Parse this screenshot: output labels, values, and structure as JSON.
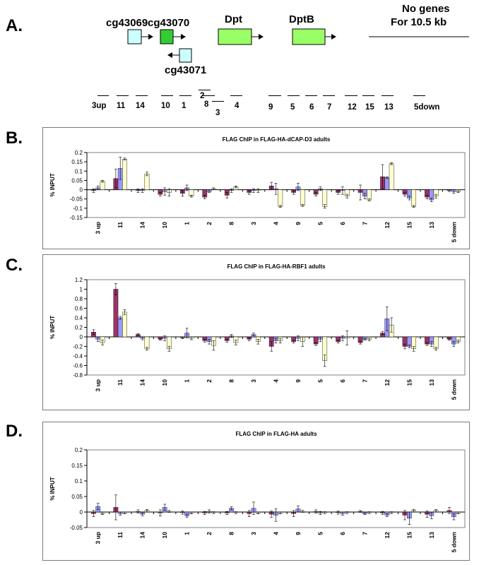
{
  "panel_a": {
    "letter": "A.",
    "genes": [
      {
        "id": "cg43069",
        "label": "cg43069",
        "color": "#ccffff"
      },
      {
        "id": "cg43070",
        "label": "cg43070",
        "color": "#33cc33"
      },
      {
        "id": "dpt",
        "label": "Dpt",
        "color": "#99ff66"
      },
      {
        "id": "dptb",
        "label": "DptB",
        "color": "#99ff66"
      },
      {
        "id": "cg43071",
        "label": "cg43071",
        "color": "#ccffff"
      }
    ],
    "no_genes_line1": "No genes",
    "no_genes_line2": "For 10.5 kb",
    "fragments": [
      "3up",
      "11",
      "14",
      "10",
      "1",
      "2",
      "8",
      "3",
      "4",
      "9",
      "5",
      "6",
      "7",
      "12",
      "15",
      "13",
      "5down"
    ]
  },
  "colors": {
    "series1": "#993366",
    "series2": "#9999ff",
    "series3": "#ffffcc"
  },
  "chart_data": [
    {
      "panel": "B.",
      "type": "bar",
      "title": "FLAG ChIP in FLAG-HA-dCAP-D3 adults",
      "ylabel": "% INPUT",
      "xlabel": "",
      "ylim": [
        -0.15,
        0.2
      ],
      "yticks": [
        "-0.15",
        "-0.1",
        "-0.05",
        "0",
        "0.05",
        "0.1",
        "0.15",
        "0.2"
      ],
      "grid": false,
      "categories": [
        "3 up",
        "11",
        "14",
        "10",
        "1",
        "2",
        "8",
        "3",
        "4",
        "9",
        "5",
        "6",
        "7",
        "12",
        "15",
        "13",
        "5 down"
      ],
      "series": [
        {
          "values": [
            -0.005,
            0.06,
            -0.005,
            -0.025,
            -0.02,
            -0.04,
            -0.03,
            -0.015,
            0.02,
            -0.015,
            -0.025,
            -0.015,
            -0.015,
            0.07,
            -0.025,
            -0.04,
            -0.005
          ],
          "errors": [
            0.01,
            0.05,
            0.01,
            0.01,
            0.015,
            0.01,
            0.015,
            0.01,
            0.02,
            0.01,
            0.01,
            0.01,
            0.04,
            0.065,
            0.01,
            0.01,
            0.005
          ]
        },
        {
          "values": [
            0.01,
            0.115,
            -0.005,
            -0.01,
            0.01,
            -0.01,
            -0.005,
            -0.005,
            0.005,
            0.015,
            0.005,
            -0.005,
            -0.035,
            0.065,
            -0.045,
            -0.055,
            -0.01
          ],
          "errors": [
            0.01,
            0.06,
            0.01,
            0.02,
            0.015,
            0.005,
            0.01,
            0.01,
            0.03,
            0.02,
            0.01,
            0.02,
            0.015,
            0.005,
            0.01,
            0.01,
            0.01
          ]
        },
        {
          "values": [
            0.045,
            0.165,
            0.085,
            -0.015,
            -0.035,
            0.005,
            0.015,
            -0.005,
            -0.09,
            -0.085,
            -0.09,
            -0.035,
            -0.055,
            0.14,
            -0.09,
            -0.035,
            -0.01
          ],
          "errors": [
            0.005,
            0.005,
            0.01,
            0.02,
            0.005,
            0.005,
            0.005,
            0.01,
            0.005,
            0.005,
            0.01,
            0.01,
            0.005,
            0.005,
            0.005,
            0.01,
            0.005
          ]
        }
      ]
    },
    {
      "panel": "C.",
      "type": "bar",
      "title": "FLAG ChIP in FLAG-HA-RBF1 adults",
      "ylabel": "% INPUT",
      "xlabel": "",
      "ylim": [
        -0.8,
        1.2
      ],
      "yticks": [
        "-0.8",
        "-0.6",
        "-0.4",
        "-0.2",
        "0",
        "0.2",
        "0.4",
        "0.6",
        "0.8",
        "1",
        "1.2"
      ],
      "grid": false,
      "categories": [
        "3 up",
        "11",
        "14",
        "10",
        "1",
        "2",
        "8",
        "3",
        "4",
        "9",
        "5",
        "6",
        "7",
        "12",
        "15",
        "13",
        "5 down"
      ],
      "series": [
        {
          "values": [
            0.1,
            1.0,
            0.05,
            -0.05,
            -0.02,
            -0.08,
            -0.08,
            -0.05,
            -0.2,
            -0.1,
            -0.15,
            -0.1,
            -0.12,
            0.08,
            -0.2,
            -0.15,
            -0.05
          ],
          "errors": [
            0.05,
            0.12,
            0.02,
            0.02,
            0.02,
            0.03,
            0.03,
            0.03,
            0.1,
            0.03,
            0.03,
            0.03,
            0.03,
            0.03,
            0.05,
            0.03,
            0.02
          ]
        },
        {
          "values": [
            -0.05,
            0.4,
            -0.03,
            -0.03,
            0.08,
            -0.1,
            0.02,
            0.05,
            -0.08,
            -0.03,
            -0.05,
            -0.03,
            -0.05,
            0.38,
            -0.2,
            -0.15,
            -0.15
          ],
          "errors": [
            0.05,
            0.03,
            0.03,
            0.05,
            0.1,
            0.05,
            0.03,
            0.03,
            0.05,
            0.05,
            0.05,
            0.05,
            0.02,
            0.25,
            0.03,
            0.05,
            0.05
          ]
        },
        {
          "values": [
            -0.12,
            0.52,
            -0.25,
            -0.25,
            -0.03,
            -0.18,
            -0.12,
            -0.1,
            -0.08,
            -0.1,
            -0.5,
            -0.02,
            -0.05,
            0.25,
            -0.25,
            -0.25,
            -0.1
          ],
          "errors": [
            0.05,
            0.05,
            0.03,
            0.05,
            0.03,
            0.1,
            0.05,
            0.05,
            0.05,
            0.1,
            0.12,
            0.15,
            0.03,
            0.15,
            0.05,
            0.03,
            0.03
          ]
        }
      ]
    },
    {
      "panel": "D.",
      "type": "bar",
      "title": "FLAG ChIP in FLAG-HA adults",
      "ylabel": "% INPUT",
      "xlabel": "",
      "ylim": [
        -0.05,
        0.2
      ],
      "yticks": [
        "-0.05",
        "0",
        "0.05",
        "0.1",
        "0.15",
        "0.2"
      ],
      "grid": false,
      "categories": [
        "3 up",
        "11",
        "14",
        "10",
        "1",
        "2",
        "8",
        "3",
        "4",
        "9",
        "5",
        "6",
        "7",
        "12",
        "15",
        "13",
        "5 down"
      ],
      "series": [
        {
          "values": [
            -0.005,
            0.015,
            0.002,
            -0.003,
            -0.002,
            -0.003,
            -0.003,
            -0.005,
            -0.007,
            -0.005,
            0.002,
            -0.002,
            0.002,
            -0.003,
            -0.01,
            -0.007,
            0.005
          ],
          "errors": [
            0.01,
            0.04,
            0.005,
            0.01,
            0.005,
            0.005,
            0.005,
            0.01,
            0.01,
            0.01,
            0.005,
            0.005,
            0.003,
            0.005,
            0.015,
            0.01,
            0.01
          ]
        },
        {
          "values": [
            0.018,
            -0.005,
            -0.007,
            0.015,
            -0.012,
            0.002,
            0.012,
            0.012,
            -0.01,
            0.01,
            -0.003,
            -0.005,
            -0.005,
            -0.01,
            -0.02,
            -0.012,
            -0.015
          ],
          "errors": [
            0.01,
            0.005,
            0.005,
            0.01,
            0.005,
            0.005,
            0.005,
            0.02,
            0.02,
            0.01,
            0.005,
            0.005,
            0.003,
            0.005,
            0.02,
            0.01,
            0.01
          ]
        },
        {
          "values": [
            -0.005,
            -0.003,
            0.005,
            0.002,
            -0.003,
            -0.002,
            -0.002,
            -0.003,
            -0.003,
            0.002,
            -0.002,
            -0.002,
            -0.002,
            -0.002,
            0.005,
            0.005,
            -0.003
          ],
          "errors": [
            0.003,
            0.003,
            0.003,
            0.003,
            0.003,
            0.003,
            0.003,
            0.003,
            0.003,
            0.003,
            0.003,
            0.003,
            0.003,
            0.003,
            0.003,
            0.003,
            0.003
          ]
        }
      ]
    }
  ]
}
